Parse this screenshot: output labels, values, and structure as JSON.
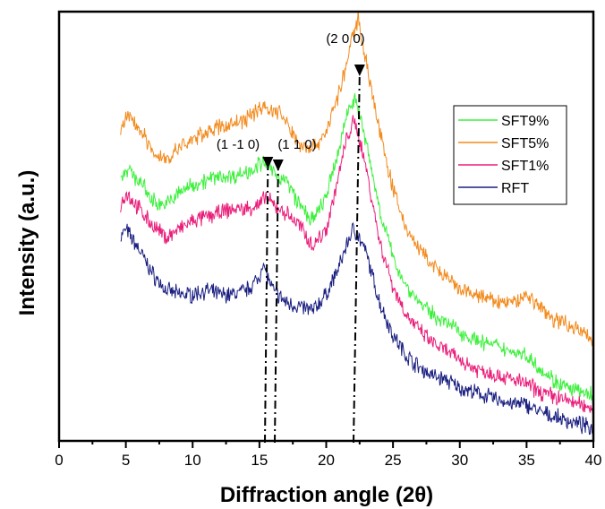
{
  "chart_data": {
    "type": "line",
    "title": "",
    "xlabel": "Diffraction angle (2θ)",
    "ylabel": "Intensity (a.u.)",
    "xlim": [
      0,
      40
    ],
    "ylim": [
      0,
      100
    ],
    "x_ticks": [
      "0",
      "5",
      "10",
      "15",
      "20",
      "25",
      "30",
      "35",
      "40"
    ],
    "y_ticks_shown": false,
    "grid": false,
    "legend_position": "right",
    "series": [
      {
        "name": "SFT9%",
        "color": "#3cf03c",
        "x": [
          4.6,
          5,
          6,
          7,
          8,
          9,
          10,
          11,
          12,
          13,
          14,
          15,
          15.5,
          16,
          17,
          18,
          19,
          20,
          21,
          21.5,
          22,
          22.3,
          23,
          24,
          25,
          26,
          27,
          28,
          29,
          30,
          31,
          32,
          33,
          34,
          35,
          36,
          37,
          38,
          39,
          40
        ],
        "y": [
          64,
          67,
          64,
          59,
          58,
          61,
          63,
          64,
          65,
          65,
          66,
          68,
          68,
          66,
          64,
          58,
          54,
          60,
          72,
          80,
          84,
          83,
          73,
          57,
          45,
          38,
          34,
          31,
          29,
          27,
          25,
          24,
          23,
          22,
          21,
          18,
          15,
          13,
          12,
          11
        ]
      },
      {
        "name": "SFT5%",
        "color": "#f28a1c",
        "x": [
          4.6,
          5,
          6,
          7,
          8,
          9,
          10,
          11,
          12,
          13,
          14,
          15,
          15.5,
          16,
          16.5,
          17,
          18,
          19,
          20,
          21,
          21.5,
          22,
          22.4,
          23,
          24,
          25,
          26,
          27,
          28,
          29,
          30,
          31,
          32,
          33,
          34,
          35,
          36,
          37,
          38,
          39,
          40
        ],
        "y": [
          75,
          80,
          77,
          71,
          69,
          72,
          74,
          76,
          77,
          78,
          79,
          82,
          82,
          81,
          81,
          78,
          73,
          72,
          76,
          86,
          92,
          100,
          104,
          93,
          76,
          62,
          52,
          47,
          43,
          40,
          37,
          36,
          35,
          34,
          34,
          36,
          33,
          30,
          29,
          27,
          25
        ]
      },
      {
        "name": "SFT1%",
        "color": "#ea1e7a",
        "x": [
          4.6,
          5,
          6,
          7,
          8,
          9,
          10,
          11,
          12,
          13,
          14,
          15,
          15.5,
          16,
          17,
          18,
          19,
          20,
          21,
          21.5,
          22,
          22.3,
          23,
          24,
          25,
          26,
          27,
          28,
          29,
          30,
          31,
          32,
          33,
          34,
          35,
          36,
          37,
          38,
          39,
          40
        ],
        "y": [
          58,
          61,
          57,
          53,
          50,
          52,
          54,
          55,
          56,
          57,
          57,
          58,
          60,
          58,
          56,
          53,
          48,
          52,
          66,
          74,
          78,
          77,
          67,
          49,
          38,
          31,
          27,
          24,
          22,
          20,
          18,
          17,
          16,
          15,
          14,
          12,
          11,
          10,
          9,
          8
        ]
      },
      {
        "name": "RFT",
        "color": "#1a1f80",
        "x": [
          4.6,
          5,
          6,
          7,
          8,
          9,
          10,
          11,
          12,
          13,
          14,
          15,
          15.2,
          16,
          17,
          18,
          19,
          20,
          21,
          21.5,
          22,
          22.3,
          23,
          24,
          25,
          26,
          27,
          28,
          29,
          30,
          31,
          32,
          33,
          34,
          35,
          36,
          37,
          38,
          39,
          40
        ],
        "y": [
          50,
          52,
          47,
          41,
          37,
          36,
          36,
          37,
          36,
          36,
          37,
          40,
          44,
          37,
          34,
          33,
          32,
          36,
          43,
          48,
          52,
          51,
          46,
          34,
          26,
          21,
          18,
          16,
          15,
          13,
          12,
          11,
          10,
          9,
          9,
          7,
          6,
          5,
          4,
          3
        ]
      }
    ],
    "annotations": [
      {
        "label": "(1 -1 0)",
        "x": 15.5
      },
      {
        "label": "(1 1 0)",
        "x": 16.2
      },
      {
        "label": "(2 0 0)",
        "x": 22.3
      }
    ]
  }
}
